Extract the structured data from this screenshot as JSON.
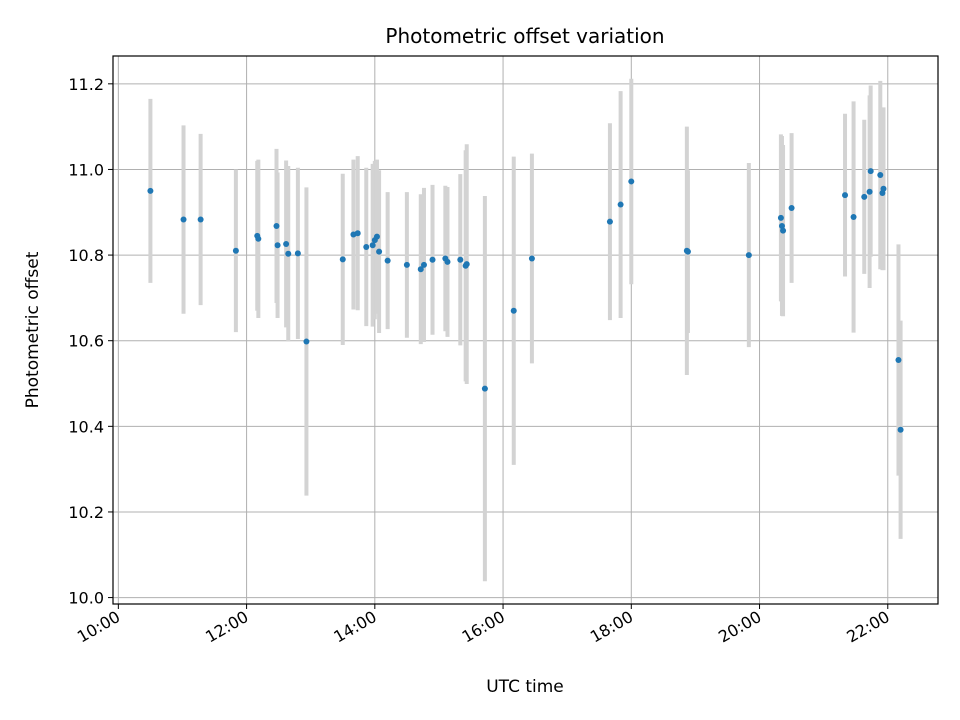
{
  "chart_data": {
    "type": "scatter",
    "title": "Photometric offset variation",
    "xlabel": "UTC time",
    "ylabel": "Photometric offset",
    "grid": true,
    "xlim": [
      "09:55",
      "22:47"
    ],
    "ylim": [
      9.985,
      11.265
    ],
    "x_ticks": [
      "10:00",
      "12:00",
      "14:00",
      "16:00",
      "18:00",
      "20:00",
      "22:00"
    ],
    "y_ticks": [
      "10.0",
      "10.2",
      "10.4",
      "10.6",
      "10.8",
      "11.0",
      "11.2"
    ],
    "colors": {
      "point": "#1f77b4",
      "errorbar": "#d3d3d3",
      "grid": "#b0b0b0"
    },
    "series": [
      {
        "x": [
          "10:30",
          "11:01",
          "11:17",
          "11:50",
          "12:10",
          "12:11",
          "12:28",
          "12:29",
          "12:37",
          "12:39",
          "12:48",
          "12:56",
          "13:30",
          "13:40",
          "13:44",
          "13:52",
          "13:58",
          "14:00",
          "14:02",
          "14:04",
          "14:12",
          "14:30",
          "14:43",
          "14:46",
          "14:54",
          "15:06",
          "15:08",
          "15:20",
          "15:25",
          "15:26",
          "15:43",
          "16:10",
          "16:27",
          "17:40",
          "17:50",
          "18:00",
          "18:52",
          "18:53",
          "19:50",
          "20:20",
          "20:21",
          "20:22",
          "20:30",
          "21:20",
          "21:28",
          "21:38",
          "21:43",
          "21:44",
          "21:53",
          "21:55",
          "21:56",
          "22:10",
          "22:12"
        ],
        "y": [
          10.95,
          10.883,
          10.883,
          10.81,
          10.845,
          10.838,
          10.868,
          10.823,
          10.826,
          10.803,
          10.804,
          10.598,
          10.79,
          10.848,
          10.851,
          10.819,
          10.823,
          10.835,
          10.843,
          10.808,
          10.787,
          10.777,
          10.767,
          10.777,
          10.789,
          10.792,
          10.784,
          10.789,
          10.775,
          10.779,
          10.488,
          10.67,
          10.792,
          10.878,
          10.918,
          10.972,
          10.81,
          10.808,
          10.8,
          10.887,
          10.868,
          10.857,
          10.91,
          10.94,
          10.889,
          10.936,
          10.948,
          10.996,
          10.987,
          10.945,
          10.955,
          10.555,
          10.392
        ],
        "yerr": [
          0.215,
          0.22,
          0.2,
          0.19,
          0.175,
          0.185,
          0.18,
          0.17,
          0.195,
          0.205,
          0.2,
          0.36,
          0.2,
          0.175,
          0.18,
          0.185,
          0.19,
          0.185,
          0.18,
          0.19,
          0.16,
          0.17,
          0.175,
          0.18,
          0.175,
          0.17,
          0.175,
          0.2,
          0.27,
          0.28,
          0.45,
          0.36,
          0.245,
          0.23,
          0.265,
          0.24,
          0.29,
          0.19,
          0.215,
          0.195,
          0.21,
          0.2,
          0.175,
          0.19,
          0.27,
          0.18,
          0.225,
          0.2,
          0.22,
          0.18,
          0.19,
          0.27,
          0.255
        ]
      }
    ]
  }
}
